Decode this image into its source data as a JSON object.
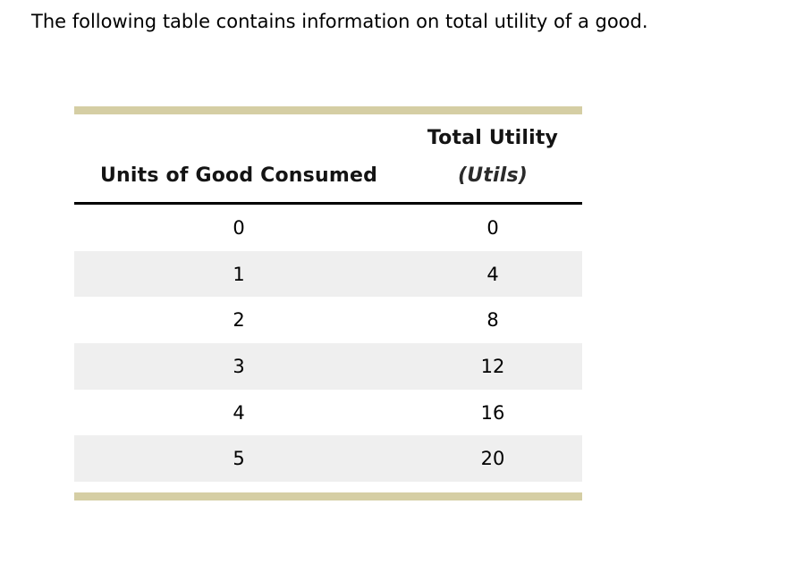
{
  "page": {
    "intro_text": "The following table contains information on total utility of a good."
  },
  "table": {
    "header": {
      "col1_label": "Units of Good Consumed",
      "col2_label_line1": "Total Utility",
      "col2_label_line2": "(Utils)"
    },
    "rows": [
      {
        "units": "0",
        "utils": "0"
      },
      {
        "units": "1",
        "utils": "4"
      },
      {
        "units": "2",
        "utils": "8"
      },
      {
        "units": "3",
        "utils": "12"
      },
      {
        "units": "4",
        "utils": "16"
      },
      {
        "units": "5",
        "utils": "20"
      }
    ],
    "colors": {
      "accent_bar": "#d5cea4",
      "alt_row": "#efefef",
      "header_rule": "#000000"
    }
  },
  "chart_data": {
    "type": "table",
    "title": "The following table contains information on total utility of a good.",
    "columns": [
      "Units of Good Consumed",
      "Total Utility (Utils)"
    ],
    "rows": [
      [
        0,
        0
      ],
      [
        1,
        4
      ],
      [
        2,
        8
      ],
      [
        3,
        12
      ],
      [
        4,
        16
      ],
      [
        5,
        20
      ]
    ]
  }
}
